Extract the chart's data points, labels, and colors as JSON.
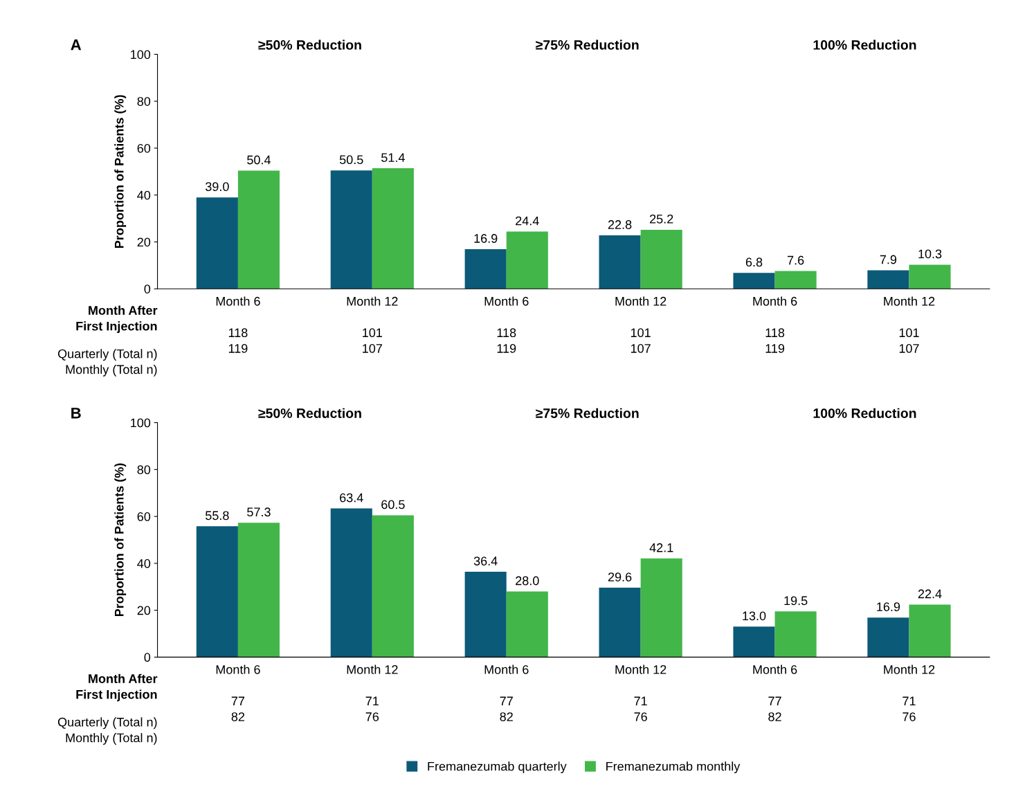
{
  "chart_data": [
    {
      "type": "bar",
      "title": "A",
      "ylabel": "Proportion of Patients (%)",
      "categories": [
        "Month 6\n\n118\n119",
        "Month 12\n\n101\n107",
        "Month 6\n\n118\n119",
        "Month 12\n\n101\n107",
        "Month 6\n\n118\n119",
        "Month 12\n\n101\n107"
      ],
      "annotations": [
        "≥50% Reduction",
        "≥75% Reduction",
        "100% Reduction",
        "Month After\nFirst Injection",
        "Quarterly (Total n)\nMonthly (Total n)"
      ],
      "series": [
        {
          "color": "#0b5a78",
          "values": [
            39.0,
            50.5,
            16.9,
            22.8,
            6.8,
            7.9
          ],
          "value_labels": [
            "39.0",
            "50.5",
            "16.9",
            "22.8",
            "6.8",
            "7.9"
          ]
        },
        {
          "color": "#43b649",
          "values": [
            50.4,
            51.4,
            24.4,
            25.2,
            7.6,
            10.3
          ],
          "value_labels": [
            "50.4",
            "51.4",
            "24.4",
            "25.2",
            "7.6",
            "10.3"
          ]
        }
      ],
      "ylim": [
        0,
        100
      ],
      "yticks": [
        0,
        20,
        40,
        60,
        80,
        100
      ],
      "grid": false,
      "legend": false
    },
    {
      "type": "bar",
      "title": "B",
      "ylabel": "Proportion of Patients (%)",
      "categories": [
        "Month 6\n\n77\n82",
        "Month 12\n\n71\n76",
        "Month 6\n\n77\n82",
        "Month 12\n\n71\n76",
        "Month 6\n\n77\n82",
        "Month 12\n\n71\n76"
      ],
      "annotations": [
        "≥50% Reduction",
        "≥75% Reduction",
        "100% Reduction",
        "Month After\nFirst Injection",
        "Quarterly (Total n)\nMonthly (Total n)"
      ],
      "series": [
        {
          "name": "Fremanezumab quarterly",
          "color": "#0b5a78",
          "values": [
            55.8,
            63.4,
            36.4,
            29.6,
            13.0,
            16.9
          ],
          "value_labels": [
            "55.8",
            "63.4",
            "36.4",
            "29.6",
            "13.0",
            "16.9"
          ]
        },
        {
          "name": "Fremanezumab monthly",
          "color": "#43b649",
          "values": [
            57.3,
            60.5,
            28.0,
            42.1,
            19.5,
            22.4
          ],
          "value_labels": [
            "57.3",
            "60.5",
            "28.0",
            "42.1",
            "19.5",
            "22.4"
          ]
        }
      ],
      "ylim": [
        0,
        100
      ],
      "yticks": [
        0,
        20,
        40,
        60,
        80,
        100
      ],
      "grid": false,
      "legend": "bottom"
    }
  ]
}
